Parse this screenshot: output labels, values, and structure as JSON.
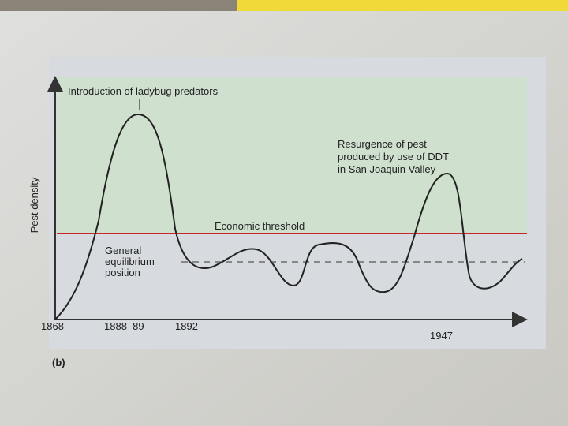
{
  "figure": {
    "panel_label": "(b)",
    "y_axis_label": "Pest density",
    "introduction_label": "Introduction of ladybug predators",
    "resurgence_label": [
      "Resurgence of pest",
      "produced by use of DDT",
      "in San Joaquin Valley"
    ],
    "threshold_label": "Economic threshold",
    "equilibrium_label": [
      "General",
      "equilibrium",
      "position"
    ],
    "x_labels": [
      "1868",
      "1888–89",
      "1892",
      "1947"
    ]
  }
}
